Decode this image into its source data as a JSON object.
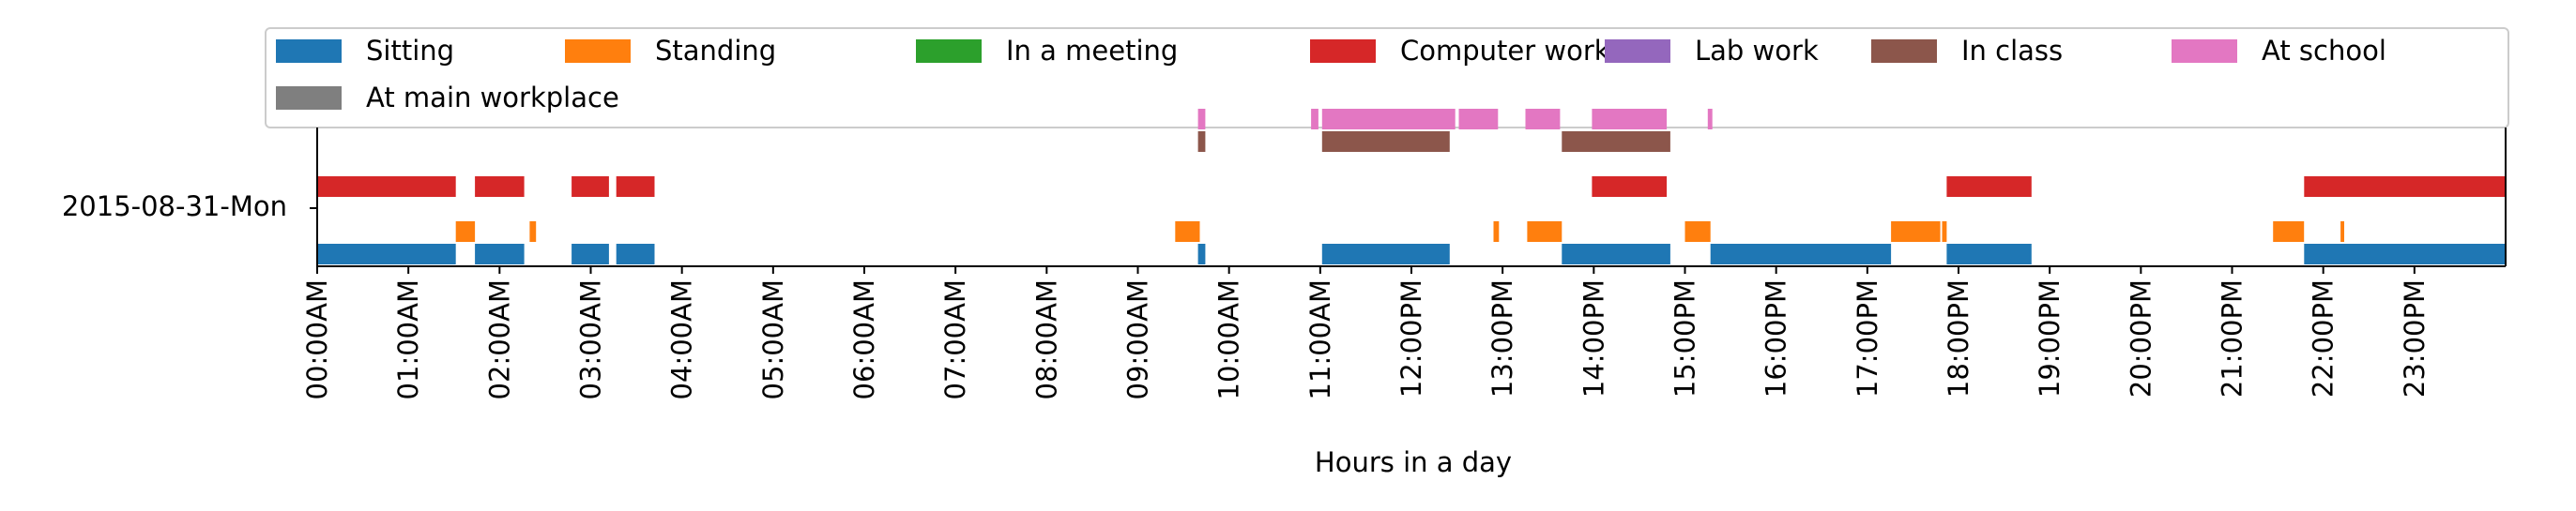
{
  "chart_data": {
    "type": "timeline",
    "row_label": "2015-08-31-Mon",
    "xlabel": "Hours in a day",
    "xlim": [
      0,
      24
    ],
    "x_ticks": [
      {
        "hour": 0,
        "label": "00:00AM"
      },
      {
        "hour": 1,
        "label": "01:00AM"
      },
      {
        "hour": 2,
        "label": "02:00AM"
      },
      {
        "hour": 3,
        "label": "03:00AM"
      },
      {
        "hour": 4,
        "label": "04:00AM"
      },
      {
        "hour": 5,
        "label": "05:00AM"
      },
      {
        "hour": 6,
        "label": "06:00AM"
      },
      {
        "hour": 7,
        "label": "07:00AM"
      },
      {
        "hour": 8,
        "label": "08:00AM"
      },
      {
        "hour": 9,
        "label": "09:00AM"
      },
      {
        "hour": 10,
        "label": "10:00AM"
      },
      {
        "hour": 11,
        "label": "11:00AM"
      },
      {
        "hour": 12,
        "label": "12:00PM"
      },
      {
        "hour": 13,
        "label": "13:00PM"
      },
      {
        "hour": 14,
        "label": "14:00PM"
      },
      {
        "hour": 15,
        "label": "15:00PM"
      },
      {
        "hour": 16,
        "label": "16:00PM"
      },
      {
        "hour": 17,
        "label": "17:00PM"
      },
      {
        "hour": 18,
        "label": "18:00PM"
      },
      {
        "hour": 19,
        "label": "19:00PM"
      },
      {
        "hour": 20,
        "label": "20:00PM"
      },
      {
        "hour": 21,
        "label": "21:00PM"
      },
      {
        "hour": 22,
        "label": "22:00PM"
      },
      {
        "hour": 23,
        "label": "23:00PM"
      }
    ],
    "legend_position": "top",
    "series": [
      {
        "name": "Sitting",
        "color": "#1f77b4",
        "level": 0,
        "intervals": [
          [
            0.0,
            1.52
          ],
          [
            1.73,
            2.27
          ],
          [
            2.79,
            3.2
          ],
          [
            3.28,
            3.7
          ],
          [
            9.66,
            9.74
          ],
          [
            11.02,
            12.42
          ],
          [
            13.65,
            14.84
          ],
          [
            15.28,
            17.26
          ],
          [
            17.87,
            18.8
          ],
          [
            21.79,
            24.0
          ]
        ]
      },
      {
        "name": "Standing",
        "color": "#ff7f0e",
        "level": 1,
        "intervals": [
          [
            1.52,
            1.73
          ],
          [
            2.33,
            2.4
          ],
          [
            9.41,
            9.68
          ],
          [
            12.9,
            12.96
          ],
          [
            13.27,
            13.65
          ],
          [
            15.0,
            15.28
          ],
          [
            17.26,
            17.8
          ],
          [
            17.82,
            17.87
          ],
          [
            21.45,
            21.79
          ],
          [
            22.19,
            22.23
          ]
        ]
      },
      {
        "name": "In a meeting",
        "color": "#2ca02c",
        "level": 2,
        "intervals": []
      },
      {
        "name": "Computer work",
        "color": "#d62728",
        "level": 3,
        "intervals": [
          [
            0.0,
            1.52
          ],
          [
            1.73,
            2.27
          ],
          [
            2.79,
            3.2
          ],
          [
            3.28,
            3.7
          ],
          [
            13.98,
            14.8
          ],
          [
            17.87,
            18.8
          ],
          [
            21.79,
            24.0
          ]
        ]
      },
      {
        "name": "Lab work",
        "color": "#9467bd",
        "level": 4,
        "intervals": []
      },
      {
        "name": "In class",
        "color": "#8c564b",
        "level": 5,
        "intervals": [
          [
            9.66,
            9.74
          ],
          [
            11.02,
            12.42
          ],
          [
            13.65,
            14.84
          ]
        ]
      },
      {
        "name": "At school",
        "color": "#e377c2",
        "level": 6,
        "intervals": [
          [
            9.66,
            9.74
          ],
          [
            10.9,
            10.98
          ],
          [
            11.02,
            12.48
          ],
          [
            12.52,
            12.95
          ],
          [
            13.25,
            13.63
          ],
          [
            13.98,
            14.8
          ],
          [
            15.25,
            15.3
          ]
        ]
      },
      {
        "name": "At main workplace",
        "color": "#7f7f7f",
        "level": 7,
        "intervals": []
      }
    ]
  }
}
